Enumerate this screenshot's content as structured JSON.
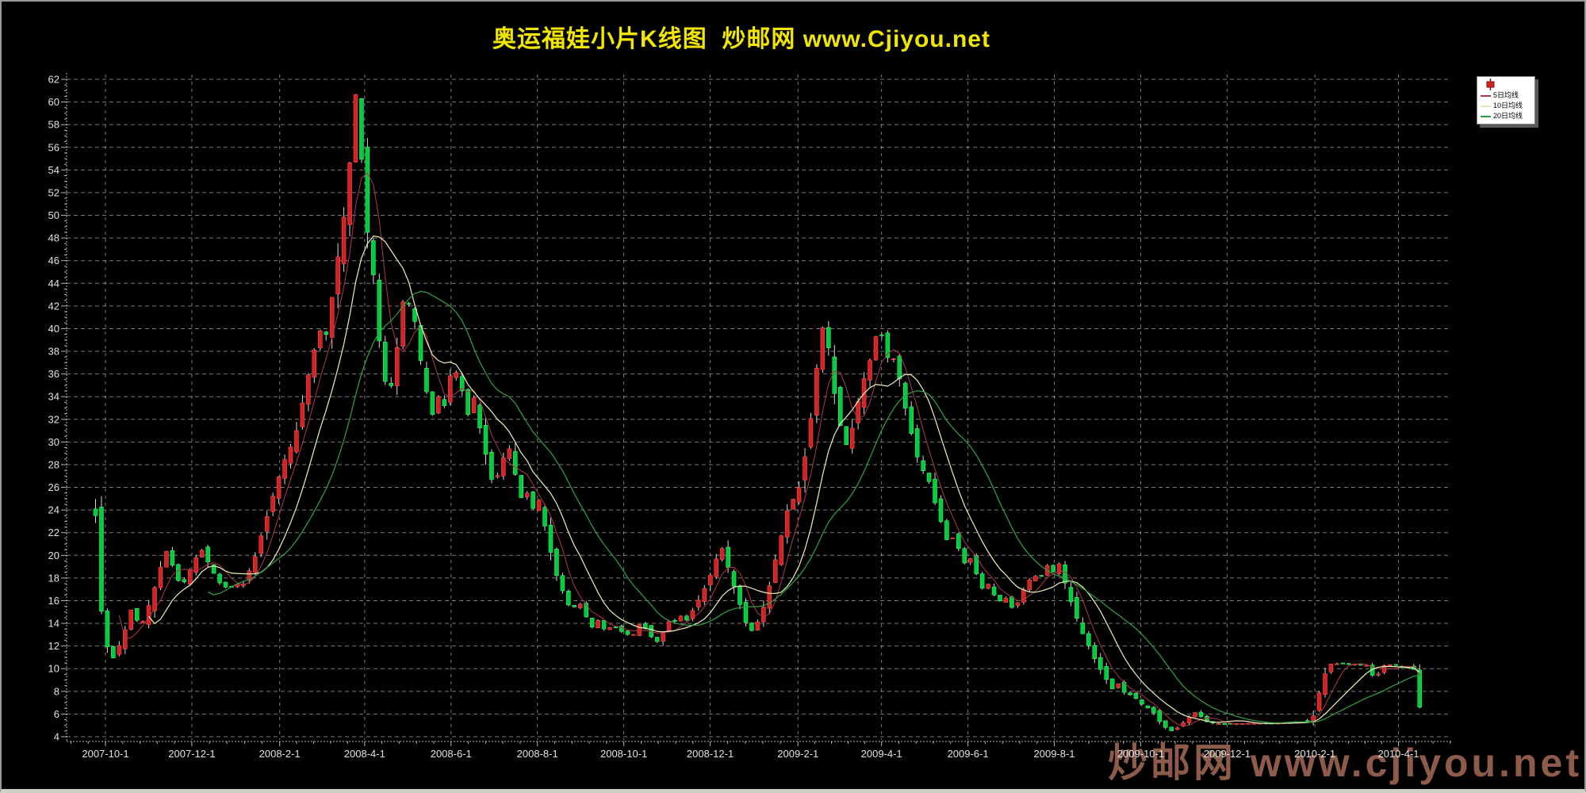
{
  "window": {
    "frame_color": "#9a9a9a",
    "background": "#000000"
  },
  "title": {
    "text": "奥运福娃小片K线图  炒邮网 www.Cjiyou.net",
    "color": "#f0e600"
  },
  "watermark": {
    "text": "炒邮网 www.cjiyou.net",
    "color": "#96604e"
  },
  "legend": {
    "background": "#ffffff",
    "candle_icon": "red-candlestick-icon",
    "items": [
      {
        "label": "5日均线",
        "color": "#b03848"
      },
      {
        "label": "10日均线",
        "color": "#e9e9b8"
      },
      {
        "label": "20日均线",
        "color": "#2f9e44"
      }
    ]
  },
  "chart_data": {
    "type": "candlestick",
    "title": "奥运福娃小片K线图",
    "xlabel": "",
    "ylabel": "",
    "ylim": [
      4,
      62
    ],
    "y_tick_step": 2,
    "grid": "dashed",
    "legend_position": "top-right",
    "x_labels": [
      "2007-10-1",
      "2007-12-1",
      "2008-2-1",
      "2008-4-1",
      "2008-6-1",
      "2008-8-1",
      "2008-10-1",
      "2008-12-1",
      "2009-2-1",
      "2009-4-1",
      "2009-6-1",
      "2009-8-1",
      "2009-10-1",
      "2009-12-1",
      "2010-2-1",
      "2010-4-1"
    ],
    "colors": {
      "up": "#d42222",
      "up_edge": "#ff5a5a",
      "down": "#00cc3c",
      "down_edge": "#49ff7d",
      "wick": "#d8d8d8",
      "grid": "rgba(255,255,255,0.48)",
      "axis": "rgba(255,255,255,0.70)",
      "axis_text": "#e2e2e2"
    },
    "ma_windows": [
      5,
      10,
      20
    ],
    "ma_colors": [
      "#b03848",
      "#e9e9b8",
      "#2f9e44"
    ],
    "ma_legend": [
      "5日均线",
      "10日均线",
      "20日均线"
    ],
    "close_path": [
      [
        "2007-09-24",
        23.5
      ],
      [
        "2007-09-27",
        16.0
      ],
      [
        "2007-10-02",
        12.0
      ],
      [
        "2007-10-08",
        10.6
      ],
      [
        "2007-10-11",
        12.2
      ],
      [
        "2007-10-16",
        13.8
      ],
      [
        "2007-10-19",
        15.2
      ],
      [
        "2007-10-23",
        14.3
      ],
      [
        "2007-10-26",
        13.8
      ],
      [
        "2007-10-30",
        14.9
      ],
      [
        "2007-11-02",
        16.2
      ],
      [
        "2007-11-06",
        17.6
      ],
      [
        "2007-11-09",
        19.0
      ],
      [
        "2007-11-13",
        20.4
      ],
      [
        "2007-11-16",
        19.5
      ],
      [
        "2007-11-20",
        18.3
      ],
      [
        "2007-11-23",
        17.2
      ],
      [
        "2007-11-27",
        17.9
      ],
      [
        "2007-11-30",
        18.8
      ],
      [
        "2007-12-04",
        19.8
      ],
      [
        "2007-12-07",
        20.7
      ],
      [
        "2007-12-11",
        19.8
      ],
      [
        "2007-12-14",
        18.9
      ],
      [
        "2007-12-18",
        18.1
      ],
      [
        "2007-12-21",
        17.5
      ],
      [
        "2007-12-26",
        17.1
      ],
      [
        "2008-01-02",
        17.5
      ],
      [
        "2008-01-04",
        17.0
      ],
      [
        "2008-01-08",
        17.8
      ],
      [
        "2008-01-11",
        18.8
      ],
      [
        "2008-01-15",
        20.0
      ],
      [
        "2008-01-18",
        21.4
      ],
      [
        "2008-01-22",
        22.9
      ],
      [
        "2008-01-25",
        24.4
      ],
      [
        "2008-01-29",
        25.9
      ],
      [
        "2008-02-01",
        27.2
      ],
      [
        "2008-02-05",
        28.6
      ],
      [
        "2008-02-12",
        30.4
      ],
      [
        "2008-02-15",
        32.4
      ],
      [
        "2008-02-19",
        34.4
      ],
      [
        "2008-02-22",
        36.4
      ],
      [
        "2008-02-26",
        38.4
      ],
      [
        "2008-02-29",
        40.0
      ],
      [
        "2008-03-04",
        38.8
      ],
      [
        "2008-03-07",
        41.4
      ],
      [
        "2008-03-11",
        44.2
      ],
      [
        "2008-03-14",
        47.2
      ],
      [
        "2008-03-18",
        50.4
      ],
      [
        "2008-03-21",
        54.0
      ],
      [
        "2008-03-24",
        58.0
      ],
      [
        "2008-03-26",
        61.2
      ],
      [
        "2008-03-28",
        57.0
      ],
      [
        "2008-04-01",
        52.5
      ],
      [
        "2008-04-03",
        48.5
      ],
      [
        "2008-04-08",
        44.0
      ],
      [
        "2008-04-10",
        40.0
      ],
      [
        "2008-04-15",
        36.0
      ],
      [
        "2008-04-17",
        33.5
      ],
      [
        "2008-04-22",
        36.2
      ],
      [
        "2008-04-25",
        39.6
      ],
      [
        "2008-04-29",
        43.2
      ],
      [
        "2008-05-06",
        41.0
      ],
      [
        "2008-05-09",
        38.2
      ],
      [
        "2008-05-13",
        35.6
      ],
      [
        "2008-05-16",
        33.6
      ],
      [
        "2008-05-20",
        32.0
      ],
      [
        "2008-05-23",
        34.0
      ],
      [
        "2008-05-27",
        33.0
      ],
      [
        "2008-05-30",
        35.2
      ],
      [
        "2008-06-03",
        37.0
      ],
      [
        "2008-06-06",
        35.4
      ],
      [
        "2008-06-11",
        33.8
      ],
      [
        "2008-06-13",
        32.4
      ],
      [
        "2008-06-17",
        34.0
      ],
      [
        "2008-06-20",
        31.9
      ],
      [
        "2008-06-24",
        29.9
      ],
      [
        "2008-06-27",
        27.9
      ],
      [
        "2008-07-01",
        26.1
      ],
      [
        "2008-07-04",
        27.1
      ],
      [
        "2008-07-08",
        28.6
      ],
      [
        "2008-07-11",
        30.0
      ],
      [
        "2008-07-15",
        28.0
      ],
      [
        "2008-07-18",
        26.1
      ],
      [
        "2008-07-22",
        24.5
      ],
      [
        "2008-07-25",
        25.6
      ],
      [
        "2008-07-29",
        24.1
      ],
      [
        "2008-08-01",
        25.4
      ],
      [
        "2008-08-05",
        23.4
      ],
      [
        "2008-08-08",
        21.4
      ],
      [
        "2008-08-12",
        19.5
      ],
      [
        "2008-08-15",
        18.0
      ],
      [
        "2008-08-19",
        16.8
      ],
      [
        "2008-08-22",
        15.8
      ],
      [
        "2008-08-26",
        15.0
      ],
      [
        "2008-08-29",
        16.2
      ],
      [
        "2008-09-02",
        15.3
      ],
      [
        "2008-09-05",
        14.4
      ],
      [
        "2008-09-09",
        13.6
      ],
      [
        "2008-09-12",
        14.4
      ],
      [
        "2008-09-16",
        13.7
      ],
      [
        "2008-09-19",
        13.1
      ],
      [
        "2008-09-23",
        14.1
      ],
      [
        "2008-09-26",
        13.5
      ],
      [
        "2008-10-07",
        12.8
      ],
      [
        "2008-10-10",
        13.6
      ],
      [
        "2008-10-14",
        14.2
      ],
      [
        "2008-10-17",
        13.4
      ],
      [
        "2008-10-21",
        12.7
      ],
      [
        "2008-10-24",
        12.3
      ],
      [
        "2008-10-28",
        13.0
      ],
      [
        "2008-10-31",
        13.8
      ],
      [
        "2008-11-04",
        14.6
      ],
      [
        "2008-11-07",
        14.0
      ],
      [
        "2008-11-11",
        14.8
      ],
      [
        "2008-11-14",
        14.2
      ],
      [
        "2008-11-18",
        15.0
      ],
      [
        "2008-11-21",
        15.7
      ],
      [
        "2008-11-25",
        16.5
      ],
      [
        "2008-11-28",
        17.4
      ],
      [
        "2008-12-02",
        18.5
      ],
      [
        "2008-12-05",
        19.6
      ],
      [
        "2008-12-09",
        20.8
      ],
      [
        "2008-12-12",
        19.5
      ],
      [
        "2008-12-16",
        18.1
      ],
      [
        "2008-12-19",
        16.7
      ],
      [
        "2008-12-23",
        15.3
      ],
      [
        "2008-12-26",
        14.1
      ],
      [
        "2008-12-30",
        13.3
      ],
      [
        "2009-01-06",
        14.6
      ],
      [
        "2009-01-09",
        16.1
      ],
      [
        "2009-01-13",
        17.8
      ],
      [
        "2009-01-16",
        19.6
      ],
      [
        "2009-01-20",
        21.6
      ],
      [
        "2009-01-23",
        23.6
      ],
      [
        "2009-02-03",
        26.3
      ],
      [
        "2009-02-06",
        28.8
      ],
      [
        "2009-02-10",
        32.0
      ],
      [
        "2009-02-13",
        35.5
      ],
      [
        "2009-02-17",
        38.8
      ],
      [
        "2009-02-19",
        40.6
      ],
      [
        "2009-02-24",
        37.4
      ],
      [
        "2009-02-27",
        34.0
      ],
      [
        "2009-03-03",
        31.4
      ],
      [
        "2009-03-06",
        29.4
      ],
      [
        "2009-03-11",
        31.0
      ],
      [
        "2009-03-13",
        32.6
      ],
      [
        "2009-03-17",
        34.2
      ],
      [
        "2009-03-20",
        35.8
      ],
      [
        "2009-03-24",
        37.3
      ],
      [
        "2009-03-27",
        39.0
      ],
      [
        "2009-03-31",
        40.2
      ],
      [
        "2009-04-03",
        38.2
      ],
      [
        "2009-04-08",
        36.6
      ],
      [
        "2009-04-10",
        37.6
      ],
      [
        "2009-04-14",
        35.4
      ],
      [
        "2009-04-17",
        33.4
      ],
      [
        "2009-04-21",
        31.4
      ],
      [
        "2009-04-24",
        29.5
      ],
      [
        "2009-04-28",
        28.0
      ],
      [
        "2009-05-05",
        26.4
      ],
      [
        "2009-05-08",
        24.9
      ],
      [
        "2009-05-12",
        23.4
      ],
      [
        "2009-05-15",
        22.0
      ],
      [
        "2009-05-19",
        20.8
      ],
      [
        "2009-05-22",
        21.8
      ],
      [
        "2009-05-26",
        20.4
      ],
      [
        "2009-05-29",
        19.2
      ],
      [
        "2009-06-02",
        20.0
      ],
      [
        "2009-06-05",
        18.9
      ],
      [
        "2009-06-09",
        17.8
      ],
      [
        "2009-06-12",
        16.8
      ],
      [
        "2009-06-16",
        17.6
      ],
      [
        "2009-06-19",
        16.6
      ],
      [
        "2009-06-23",
        15.8
      ],
      [
        "2009-06-26",
        16.6
      ],
      [
        "2009-06-30",
        15.8
      ],
      [
        "2009-07-03",
        15.2
      ],
      [
        "2009-07-07",
        16.0
      ],
      [
        "2009-07-10",
        16.9
      ],
      [
        "2009-07-14",
        17.7
      ],
      [
        "2009-07-17",
        18.5
      ],
      [
        "2009-07-21",
        17.7
      ],
      [
        "2009-07-24",
        18.5
      ],
      [
        "2009-07-28",
        19.3
      ],
      [
        "2009-07-31",
        18.5
      ],
      [
        "2009-08-04",
        19.4
      ],
      [
        "2009-08-07",
        18.1
      ],
      [
        "2009-08-11",
        16.7
      ],
      [
        "2009-08-14",
        15.3
      ],
      [
        "2009-08-18",
        14.1
      ],
      [
        "2009-08-21",
        13.1
      ],
      [
        "2009-08-25",
        12.1
      ],
      [
        "2009-08-28",
        11.2
      ],
      [
        "2009-09-01",
        10.3
      ],
      [
        "2009-09-04",
        9.6
      ],
      [
        "2009-09-08",
        8.8
      ],
      [
        "2009-09-11",
        8.2
      ],
      [
        "2009-09-15",
        8.7
      ],
      [
        "2009-09-18",
        8.1
      ],
      [
        "2009-09-22",
        7.5
      ],
      [
        "2009-09-25",
        7.9
      ],
      [
        "2009-09-29",
        7.1
      ],
      [
        "2009-10-09",
        6.3
      ],
      [
        "2009-10-13",
        5.6
      ],
      [
        "2009-10-16",
        5.0
      ],
      [
        "2009-10-20",
        4.7
      ],
      [
        "2009-10-23",
        4.5
      ],
      [
        "2009-10-27",
        4.8
      ],
      [
        "2009-10-30",
        5.1
      ],
      [
        "2009-11-03",
        5.6
      ],
      [
        "2009-11-06",
        6.0
      ],
      [
        "2009-11-10",
        6.2
      ],
      [
        "2009-11-13",
        5.7
      ],
      [
        "2009-11-17",
        5.3
      ],
      [
        "2009-11-20",
        5.2
      ],
      [
        "2009-11-27",
        5.15
      ],
      [
        "2009-12-08",
        5.15
      ],
      [
        "2009-12-22",
        5.2
      ],
      [
        "2010-01-05",
        5.2
      ],
      [
        "2010-01-15",
        5.25
      ],
      [
        "2010-01-22",
        5.3
      ],
      [
        "2010-01-28",
        5.4
      ],
      [
        "2010-02-01",
        6.0
      ],
      [
        "2010-02-03",
        7.2
      ],
      [
        "2010-02-05",
        8.5
      ],
      [
        "2010-02-09",
        9.8
      ],
      [
        "2010-02-11",
        10.4
      ],
      [
        "2010-02-23",
        10.5
      ],
      [
        "2010-02-26",
        10.3
      ],
      [
        "2010-03-02",
        10.45
      ],
      [
        "2010-03-05",
        10.3
      ],
      [
        "2010-03-09",
        10.4
      ],
      [
        "2010-03-12",
        9.7
      ],
      [
        "2010-03-16",
        9.0
      ],
      [
        "2010-03-19",
        9.9
      ],
      [
        "2010-03-23",
        10.4
      ],
      [
        "2010-03-26",
        10.35
      ],
      [
        "2010-03-30",
        10.3
      ],
      [
        "2010-04-02",
        10.2
      ],
      [
        "2010-04-07",
        10.1
      ],
      [
        "2010-04-09",
        10.0
      ],
      [
        "2010-04-13",
        9.9
      ],
      [
        "2010-04-16",
        6.6
      ]
    ]
  }
}
